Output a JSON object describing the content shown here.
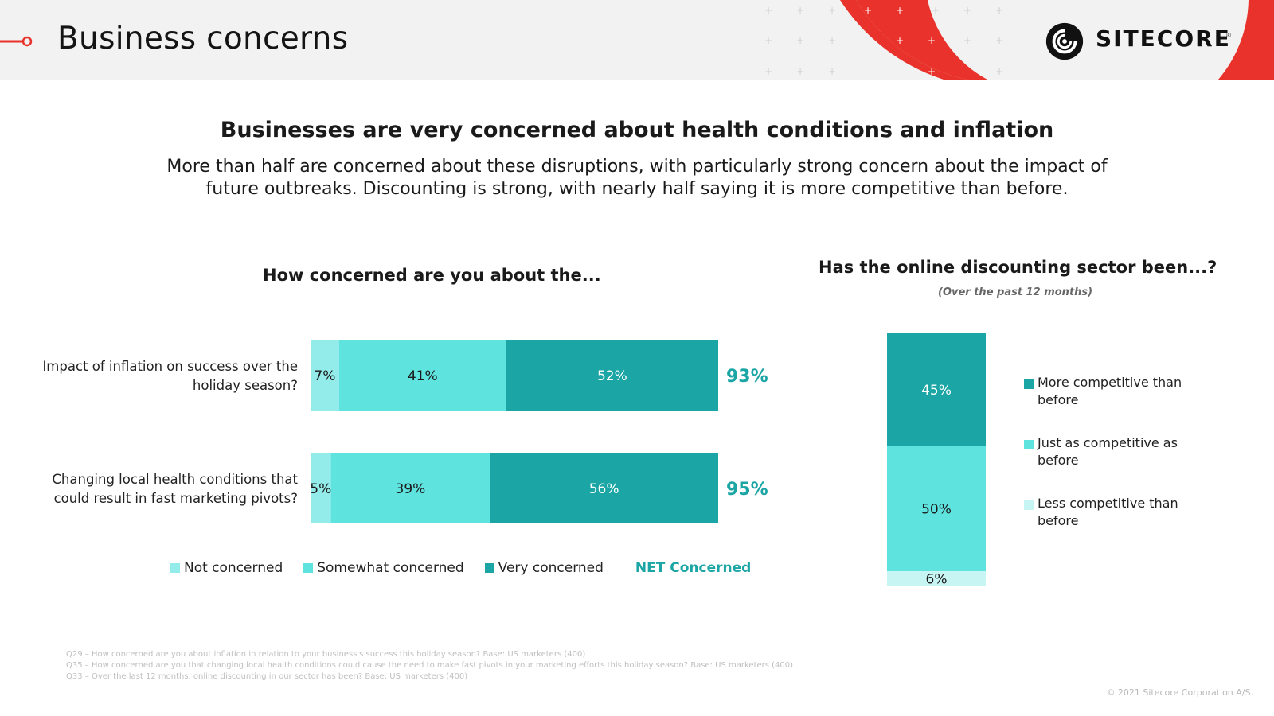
{
  "header": {
    "title": "Business concerns",
    "logo_text": "SITECORE",
    "logo_mark": "®"
  },
  "headline": "Businesses are very concerned about health conditions and inflation",
  "subhead": "More than half are concerned about these disruptions, with particularly strong concern about the impact of future outbreaks. Discounting is strong, with nearly half saying it is more competitive than before.",
  "colors": {
    "accent_red": "#e8322b",
    "not_concerned": "#93ebea",
    "somewhat_concerned": "#5ee3df",
    "very_concerned": "#1ba5a4",
    "less_competitive": "#c7f5f4"
  },
  "chart_data": [
    {
      "type": "bar",
      "orientation": "horizontal-stacked",
      "title": "How concerned are you about the...",
      "categories": [
        "Impact of inflation on success over the holiday season?",
        "Changing local health conditions that could result in fast marketing pivots?"
      ],
      "category_lines": [
        [
          "Impact of inflation on success over the",
          "holiday season?"
        ],
        [
          "Changing local health conditions that",
          "could result in fast marketing pivots?"
        ]
      ],
      "series": [
        {
          "name": "Not concerned",
          "values": [
            7,
            5
          ],
          "labels": [
            "7%",
            "5%"
          ]
        },
        {
          "name": "Somewhat concerned",
          "values": [
            41,
            39
          ],
          "labels": [
            "41%",
            "39%"
          ]
        },
        {
          "name": "Very concerned",
          "values": [
            52,
            56
          ],
          "labels": [
            "52%",
            "56%"
          ]
        }
      ],
      "net": {
        "name": "NET Concerned",
        "values": [
          93,
          95
        ],
        "labels": [
          "93%",
          "95%"
        ]
      },
      "xlim": [
        0,
        100
      ],
      "legend": "bottom"
    },
    {
      "type": "bar",
      "orientation": "vertical-stacked",
      "title": "Has the online discounting sector been...?",
      "subtitle": "(Over the past 12 months)",
      "series": [
        {
          "name": "More competitive than before",
          "value": 45,
          "label": "45%"
        },
        {
          "name": "Just as competitive as before",
          "value": 50,
          "label": "50%"
        },
        {
          "name": "Less competitive than before",
          "value": 6,
          "label": "6%"
        }
      ],
      "legend": "right"
    }
  ],
  "footnotes": [
    "Q29 – How concerned are you about inflation in relation to your business's success this holiday season? Base: US marketers (400)",
    "Q35 – How concerned are you that changing local health conditions could cause the need to make fast pivots in your marketing efforts this holiday season? Base: US marketers (400)",
    "Q33 – Over the last 12 months, online discounting in our sector has been? Base: US marketers (400)"
  ],
  "copyright": "© 2021 Sitecore Corporation A/S."
}
